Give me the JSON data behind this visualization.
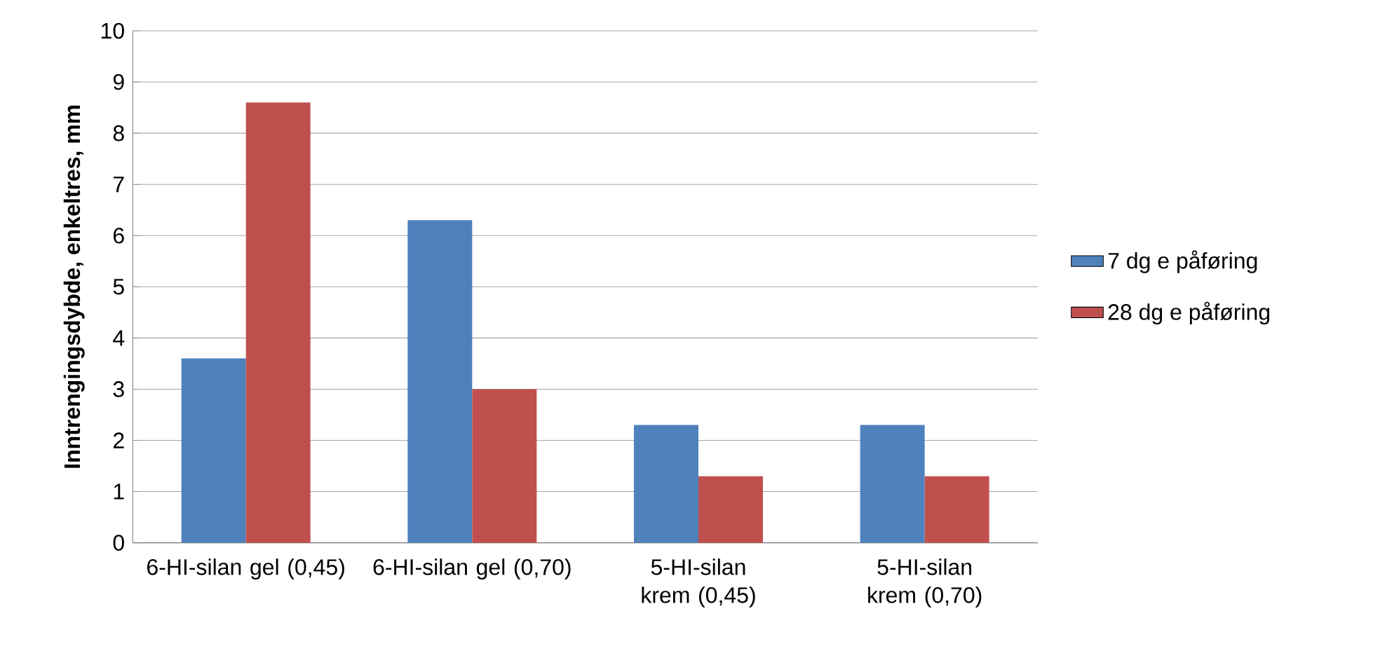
{
  "chart_data": {
    "type": "bar",
    "ylabel": "Inntrengingsdybde, enkeltres, mm",
    "categories": [
      "6-HI-silan gel (0,45)",
      "6-HI-silan gel (0,70)",
      "5-HI-silan krem (0,45)",
      "5-HI-silan krem (0,70)"
    ],
    "series": [
      {
        "name": "7 dg e påføring",
        "color": "#4f81bd",
        "values": [
          3.6,
          6.3,
          2.3,
          2.3
        ]
      },
      {
        "name": "28 dg e påføring",
        "color": "#c0504d",
        "values": [
          8.6,
          3.0,
          1.3,
          1.3
        ]
      }
    ],
    "ylim": [
      0,
      10
    ],
    "yticks": [
      0,
      1,
      2,
      3,
      4,
      5,
      6,
      7,
      8,
      9,
      10
    ],
    "grid": "y",
    "legend": "right"
  }
}
